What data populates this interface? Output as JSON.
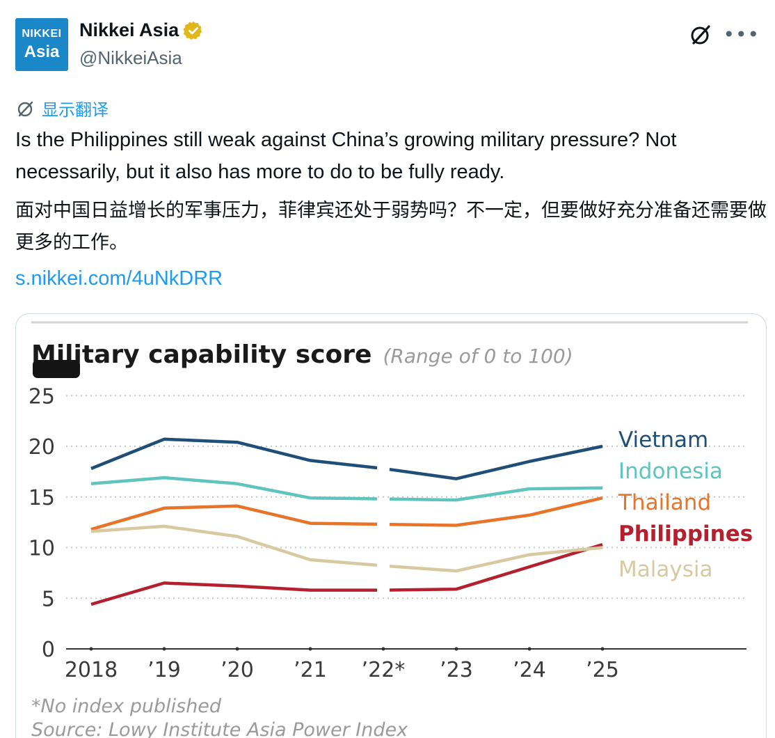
{
  "account": {
    "avatar_line1": "NIKKEI",
    "avatar_line2": "Asia",
    "name": "Nikkei Asia",
    "handle": "@NikkeiAsia",
    "verified_color": "#e2b719"
  },
  "icons": {
    "header_action": "grok-slash-icon",
    "more": "more-dots-icon",
    "translate": "grok-slash-icon"
  },
  "translate_label": "显示翻译",
  "tweet": {
    "text_en": "Is the Philippines still weak against China’s growing military pressure? Not necessarily, but it also has more to do to be fully ready.",
    "text_zh": "面对中国日益增长的军事压力，菲律宾还处于弱势吗？不一定，但要做好充分准备还需要做更多的工作。",
    "link": "s.nikkei.com/4uNkDRR"
  },
  "chart_data": {
    "type": "line",
    "title": "Military capability score",
    "subtitle": "(Range of 0 to 100)",
    "categories": [
      "2018",
      "’19",
      "’20",
      "’21",
      "’22*",
      "’23",
      "’24",
      "’25"
    ],
    "ylim": [
      0,
      25
    ],
    "yticks": [
      0,
      5,
      10,
      15,
      20,
      25
    ],
    "grid": true,
    "gap_at": "’22*",
    "series": [
      {
        "name": "Vietnam",
        "color": "#1f4e79",
        "values": [
          17.8,
          20.7,
          20.4,
          18.6,
          17.8,
          16.8,
          18.5,
          20.0
        ]
      },
      {
        "name": "Indonesia",
        "color": "#5ec4bd",
        "values": [
          16.3,
          16.9,
          16.3,
          14.9,
          14.8,
          14.7,
          15.8,
          15.9
        ]
      },
      {
        "name": "Thailand",
        "color": "#e8742a",
        "values": [
          11.8,
          13.9,
          14.1,
          12.4,
          12.3,
          12.2,
          13.2,
          14.9
        ]
      },
      {
        "name": "Philippines",
        "color": "#b5202e",
        "values": [
          4.4,
          6.5,
          6.2,
          5.8,
          5.8,
          5.9,
          8.1,
          10.3
        ]
      },
      {
        "name": "Malaysia",
        "color": "#d8c9a0",
        "values": [
          11.6,
          12.1,
          11.1,
          8.8,
          8.2,
          7.7,
          9.3,
          10.0
        ]
      }
    ],
    "footnote": "*No index published",
    "source": "Source: Lowy Institute Asia Power Index"
  }
}
